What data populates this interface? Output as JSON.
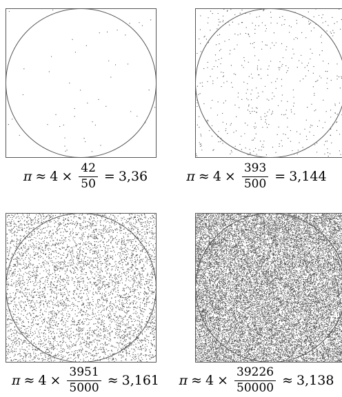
{
  "panels": [
    {
      "samples": 50,
      "inside": 42,
      "formula": {
        "pi": "π",
        "approx": "≈",
        "four": "4",
        "times": "×",
        "numerator": "42",
        "denominator": "50",
        "relation": "=",
        "result": "3,36"
      }
    },
    {
      "samples": 500,
      "inside": 393,
      "formula": {
        "pi": "π",
        "approx": "≈",
        "four": "4",
        "times": "×",
        "numerator": "393",
        "denominator": "500",
        "relation": "=",
        "result": "3,144"
      }
    },
    {
      "samples": 5000,
      "inside": 3951,
      "formula": {
        "pi": "π",
        "approx": "≈",
        "four": "4",
        "times": "×",
        "numerator": "3951",
        "denominator": "5000",
        "relation": "≈",
        "result": "3,161"
      }
    },
    {
      "samples": 50000,
      "inside": 39226,
      "formula": {
        "pi": "π",
        "approx": "≈",
        "four": "4",
        "times": "×",
        "numerator": "39226",
        "denominator": "50000",
        "relation": "≈",
        "result": "3,138"
      }
    }
  ],
  "colors": {
    "stroke": "#555555",
    "dot": "#4a4a4a",
    "text": "#000000"
  }
}
